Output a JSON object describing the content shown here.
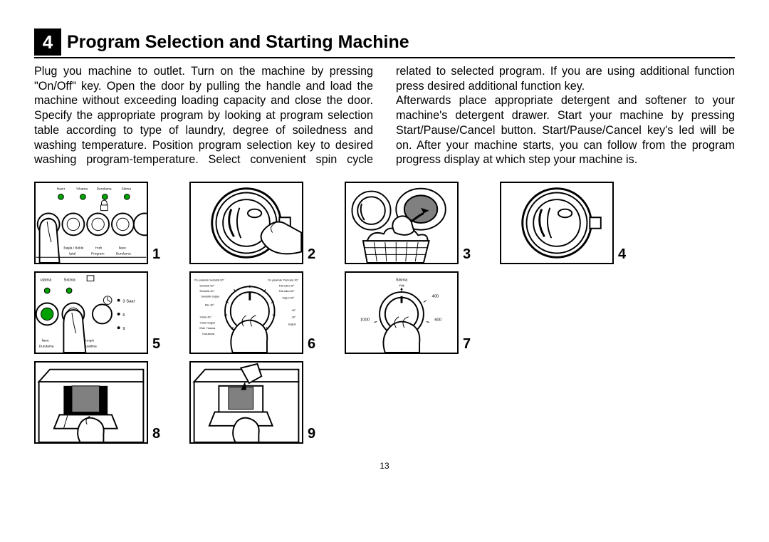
{
  "section": {
    "number": "4",
    "title": "Program Selection and Starting Machine"
  },
  "body": "Plug you machine to outlet. Turn on the machine by pressing \"On/Off\" key. Open the door by pulling the handle and load the machine without exceeding loading capacity and close the door. Specify the appropriate program by looking at program selection table according to type of laundry, degree of soiledness and washing temperature. Position program selection key to desired washing program-temperature.  Select convenient spin cycle related to selected program. If you are using additional function press desired additional function key.\nAfterwards place appropriate detergent and softener to your machine's detergent drawer. Start your machine by pressing Start/Pause/Cancel button. Start/Pause/Cancel key's led will be on. After your machine starts, you can follow from the program progress display at which step your machine is.",
  "figures": {
    "rows": [
      [
        "1",
        "2",
        "3",
        "4"
      ],
      [
        "5",
        "6",
        "7"
      ],
      [
        "8",
        "9"
      ]
    ]
  },
  "panel1": {
    "top_labels": [
      "Hazır",
      "Yıkama",
      "Durulama",
      "Sıkma"
    ],
    "bottom_labels_1": [
      "Başla / Bekle",
      "Hızlı",
      "İlave"
    ],
    "bottom_labels_2": [
      "İptal",
      "Program",
      "Durulama"
    ],
    "led_color": "#00a000"
  },
  "panel5": {
    "top_labels": [
      "ulama",
      "Sıkma"
    ],
    "side_labels": [
      "3 Saat",
      "6",
      "9"
    ],
    "bottom_labels": [
      "İlave",
      "Kırışık"
    ],
    "bottom_labels2": [
      "Durulama",
      "Azaltma"
    ],
    "led_color": "#00a000"
  },
  "panel6": {
    "left_labels": [
      "Ön yıkamalı Sentetik 60°",
      "Sentetik 60°",
      "Sentetik 40°",
      "Sentetik Soğuk",
      "Mix 40°",
      "",
      "Yünlü 40°",
      "Yünlü Soğuk",
      "Elde Yıkama",
      "Durulama"
    ],
    "right_labels": [
      "Ön yıkamalı Pamuklu 90°",
      "Pamuklu 90°",
      "Pamuklu 60°",
      "Yoğun 60°",
      "",
      "40°",
      "30°",
      "Soğuk"
    ]
  },
  "panel7": {
    "title": "Sıkma",
    "sub": "Yok",
    "ticks": [
      "400",
      "600",
      "800",
      "1000"
    ]
  },
  "page_number": "13",
  "colors": {
    "black": "#000000",
    "white": "#ffffff",
    "green": "#00a000",
    "gray": "#808080"
  }
}
